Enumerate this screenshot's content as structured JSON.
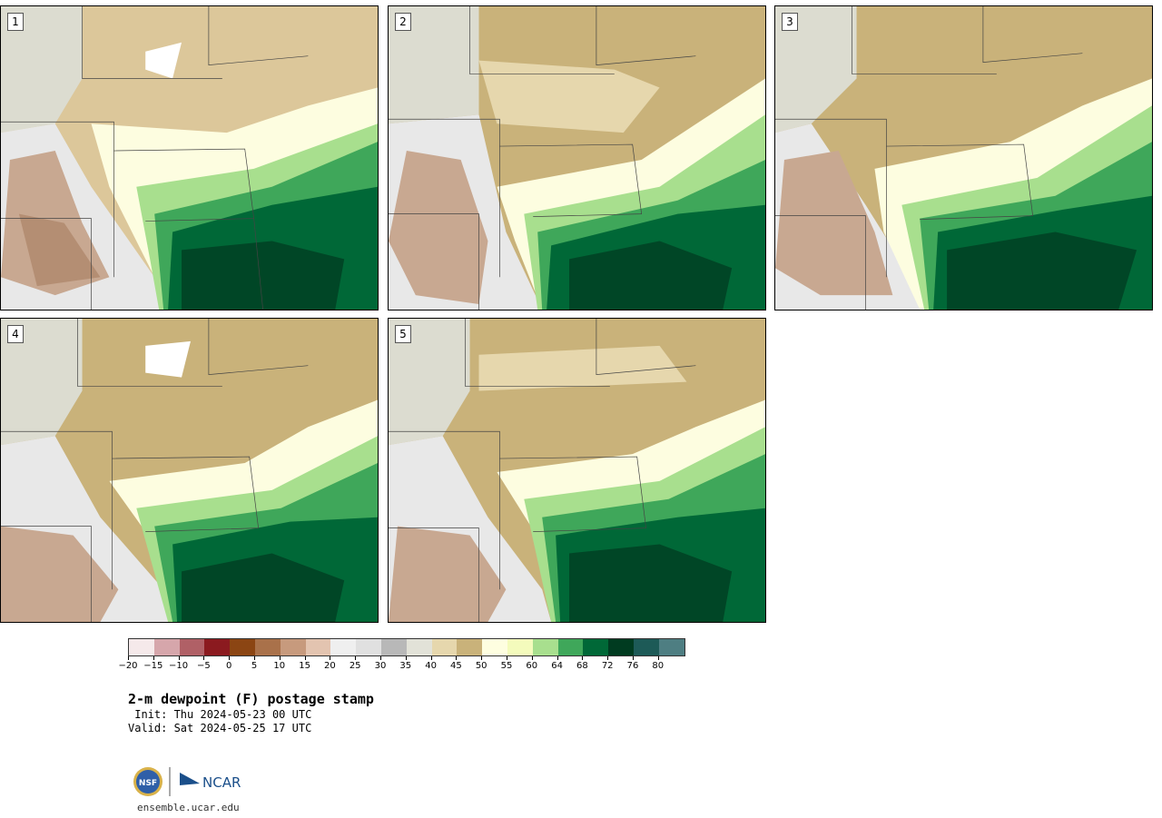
{
  "panels": [
    {
      "label": "1"
    },
    {
      "label": "2"
    },
    {
      "label": "3"
    },
    {
      "label": "4"
    },
    {
      "label": "5"
    }
  ],
  "colorbar": {
    "colors": [
      "#f5e9ea",
      "#d6a6ab",
      "#b06066",
      "#8b1a1f",
      "#8b4513",
      "#a9714a",
      "#c79a7d",
      "#e3c4b0",
      "#efefef",
      "#e0e0e0",
      "#b8b8b8",
      "#e2e2d8",
      "#e6d7ad",
      "#c9b27a",
      "#fefee0",
      "#f4fbbc",
      "#a8df8e",
      "#3fa75a",
      "#006837",
      "#003b20",
      "#1d5a57",
      "#4e7e82"
    ],
    "tick_labels": [
      "−20",
      "−15",
      "−10",
      "−5",
      "0",
      "5",
      "10",
      "15",
      "20",
      "25",
      "30",
      "35",
      "40",
      "45",
      "50",
      "55",
      "60",
      "64",
      "68",
      "72",
      "76",
      "80"
    ]
  },
  "title": "2-m dewpoint (F) postage stamp",
  "init": " Init: Thu 2024-05-23 00 UTC",
  "valid": "Valid: Sat 2024-05-25 17 UTC",
  "logo": {
    "nsf": "NSF",
    "ncar": "NCAR"
  },
  "site": "ensemble.ucar.edu"
}
